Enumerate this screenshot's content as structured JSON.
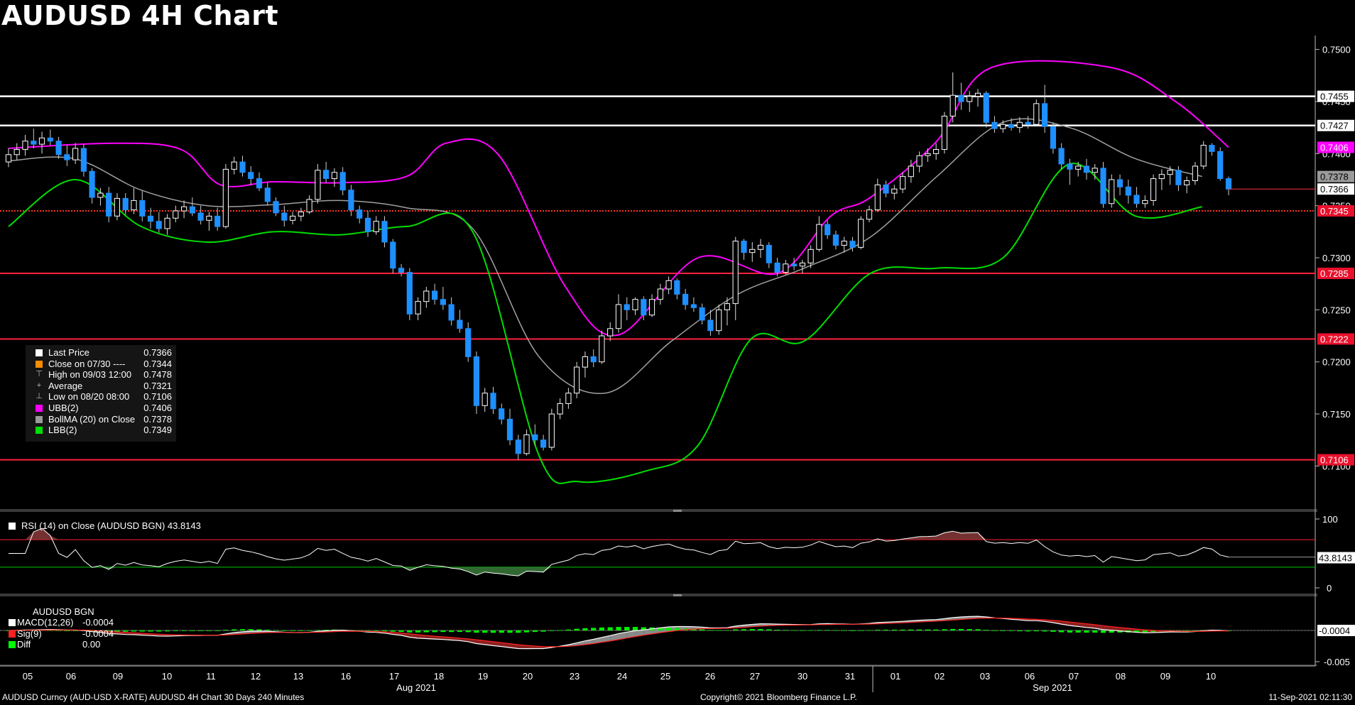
{
  "title": "AUDUSD 4H Chart",
  "legend": [
    {
      "label": "Last Price",
      "value": "0.7366",
      "color": "#ffffff",
      "glyph": ""
    },
    {
      "label": "Close on 07/30 ----",
      "value": "0.7344",
      "color": "#ff8c00",
      "glyph": ""
    },
    {
      "label": "High on 09/03 12:00",
      "value": "0.7478",
      "color": "",
      "glyph": "⊤"
    },
    {
      "label": "Average",
      "value": "0.7321",
      "color": "",
      "glyph": "+"
    },
    {
      "label": "Low on 08/20 08:00",
      "value": "0.7106",
      "color": "",
      "glyph": "⊥"
    },
    {
      "label": "UBB(2)",
      "value": "0.7406",
      "color": "#ff00ff",
      "glyph": ""
    },
    {
      "label": "BollMA (20)  on Close",
      "value": "0.7378",
      "color": "#9a9a9a",
      "glyph": ""
    },
    {
      "label": "LBB(2)",
      "value": "0.7349",
      "color": "#00e000",
      "glyph": ""
    }
  ],
  "rsi_label": "RSI (14)  on Close (AUDUSD BGN) 43.8143",
  "macd": {
    "title": "AUDUSD BGN",
    "rows": [
      {
        "label": "MACD(12,26)",
        "value": "-0.0004",
        "color": "#ffffff"
      },
      {
        "label": "Sig(9)",
        "value": "-0.0004",
        "color": "#ff2020"
      },
      {
        "label": "Diff",
        "value": "0.00",
        "color": "#00ff00"
      }
    ]
  },
  "footer_left": "AUDUSD Curncy (AUD-USD X-RATE) AUDUSD 4H Chart 30 Days 240 Minutes",
  "footer_mid": "Copyright© 2021 Bloomberg Finance L.P.",
  "footer_right": "11-Sep-2021 02:11:30",
  "colors": {
    "up": "#ffffff",
    "down": "#1e8fff",
    "ubb": "#ff00ff",
    "lbb": "#00dd00",
    "ma": "#a0a0a0",
    "level_red": "#ff2040",
    "level_white": "#ffffff"
  },
  "chart_data": {
    "type": "candlestick",
    "title": "AUDUSD 4H Chart",
    "y_ticks": [
      "0.7500",
      "0.7450",
      "0.7400",
      "0.7350",
      "0.7300",
      "0.7250",
      "0.7200",
      "0.7150",
      "0.7100"
    ],
    "ylim": [
      0.7058,
      0.751
    ],
    "x_ticks": [
      "05",
      "06",
      "09",
      "10",
      "11",
      "12",
      "13",
      "16",
      "17",
      "18",
      "19",
      "20",
      "23",
      "24",
      "25",
      "26",
      "27",
      "30",
      "31",
      "01",
      "02",
      "03",
      "06",
      "07",
      "08",
      "09",
      "10"
    ],
    "month_labels": [
      {
        "label": "Aug 2021",
        "at": "17"
      },
      {
        "label": "Sep 2021",
        "at": "06"
      }
    ],
    "levels": [
      {
        "value": 0.7455,
        "label": "0.7455",
        "color": "white"
      },
      {
        "value": 0.7427,
        "label": "0.7427",
        "color": "white"
      },
      {
        "value": 0.7345,
        "label": "0.7345",
        "color": "red-dotted"
      },
      {
        "value": 0.7285,
        "label": "0.7285",
        "color": "red"
      },
      {
        "value": 0.7222,
        "label": "0.7222",
        "color": "red"
      },
      {
        "value": 0.7106,
        "label": "0.7106",
        "color": "red"
      }
    ],
    "price_tags": [
      {
        "value": 0.7406,
        "label": "0.7406",
        "color": "magenta"
      },
      {
        "value": 0.7378,
        "label": "0.7378",
        "color": "gray"
      },
      {
        "value": 0.7366,
        "label": "0.7366",
        "color": "white"
      }
    ],
    "candles": [
      [
        0.7392,
        0.7405,
        0.7387,
        0.7399
      ],
      [
        0.7399,
        0.741,
        0.7394,
        0.7404
      ],
      [
        0.7404,
        0.7418,
        0.7398,
        0.7412
      ],
      [
        0.7412,
        0.7424,
        0.7405,
        0.7409
      ],
      [
        0.7409,
        0.7421,
        0.74,
        0.7415
      ],
      [
        0.7415,
        0.7423,
        0.7408,
        0.7412
      ],
      [
        0.7412,
        0.7416,
        0.7395,
        0.7399
      ],
      [
        0.7399,
        0.7408,
        0.7388,
        0.7394
      ],
      [
        0.7394,
        0.741,
        0.739,
        0.7405
      ],
      [
        0.7405,
        0.7409,
        0.7378,
        0.7383
      ],
      [
        0.7383,
        0.7386,
        0.7352,
        0.7358
      ],
      [
        0.7358,
        0.7367,
        0.735,
        0.7362
      ],
      [
        0.7362,
        0.7368,
        0.7334,
        0.734
      ],
      [
        0.734,
        0.7362,
        0.7336,
        0.7357
      ],
      [
        0.7357,
        0.7362,
        0.7341,
        0.7346
      ],
      [
        0.7346,
        0.7367,
        0.7342,
        0.7355
      ],
      [
        0.7355,
        0.7364,
        0.7335,
        0.734
      ],
      [
        0.734,
        0.7348,
        0.7328,
        0.7335
      ],
      [
        0.7335,
        0.7344,
        0.7324,
        0.7328
      ],
      [
        0.7328,
        0.7342,
        0.7322,
        0.7338
      ],
      [
        0.7338,
        0.735,
        0.7334,
        0.7345
      ],
      [
        0.7345,
        0.7355,
        0.7338,
        0.7349
      ],
      [
        0.7349,
        0.7358,
        0.734,
        0.7343
      ],
      [
        0.7343,
        0.735,
        0.7332,
        0.7336
      ],
      [
        0.7336,
        0.7344,
        0.7326,
        0.734
      ],
      [
        0.734,
        0.7348,
        0.7326,
        0.733
      ],
      [
        0.733,
        0.739,
        0.7328,
        0.7385
      ],
      [
        0.7385,
        0.7397,
        0.738,
        0.7392
      ],
      [
        0.7392,
        0.7398,
        0.7378,
        0.7382
      ],
      [
        0.7382,
        0.7388,
        0.737,
        0.7376
      ],
      [
        0.7376,
        0.7382,
        0.7364,
        0.7367
      ],
      [
        0.7367,
        0.7372,
        0.735,
        0.7354
      ],
      [
        0.7354,
        0.7358,
        0.734,
        0.7343
      ],
      [
        0.7343,
        0.735,
        0.733,
        0.7336
      ],
      [
        0.7336,
        0.7344,
        0.7332,
        0.734
      ],
      [
        0.734,
        0.7348,
        0.7335,
        0.7344
      ],
      [
        0.7344,
        0.736,
        0.7342,
        0.7356
      ],
      [
        0.7356,
        0.739,
        0.7352,
        0.7384
      ],
      [
        0.7384,
        0.7392,
        0.7372,
        0.7376
      ],
      [
        0.7376,
        0.7386,
        0.7368,
        0.7382
      ],
      [
        0.7382,
        0.7387,
        0.736,
        0.7365
      ],
      [
        0.7365,
        0.737,
        0.734,
        0.7346
      ],
      [
        0.7346,
        0.735,
        0.7333,
        0.7338
      ],
      [
        0.7338,
        0.7345,
        0.732,
        0.7325
      ],
      [
        0.7325,
        0.734,
        0.7322,
        0.7335
      ],
      [
        0.7335,
        0.734,
        0.731,
        0.7315
      ],
      [
        0.7315,
        0.7318,
        0.7285,
        0.729
      ],
      [
        0.729,
        0.7294,
        0.7282,
        0.7286
      ],
      [
        0.7286,
        0.729,
        0.724,
        0.7246
      ],
      [
        0.7246,
        0.7262,
        0.724,
        0.7258
      ],
      [
        0.7258,
        0.7272,
        0.7252,
        0.7268
      ],
      [
        0.7268,
        0.7275,
        0.7255,
        0.726
      ],
      [
        0.726,
        0.7272,
        0.725,
        0.7255
      ],
      [
        0.7255,
        0.7262,
        0.7235,
        0.724
      ],
      [
        0.724,
        0.725,
        0.7228,
        0.7232
      ],
      [
        0.7232,
        0.7238,
        0.72,
        0.7205
      ],
      [
        0.7205,
        0.721,
        0.715,
        0.7158
      ],
      [
        0.7158,
        0.7175,
        0.7152,
        0.717
      ],
      [
        0.717,
        0.7176,
        0.715,
        0.7155
      ],
      [
        0.7155,
        0.716,
        0.714,
        0.7145
      ],
      [
        0.7145,
        0.7155,
        0.712,
        0.7125
      ],
      [
        0.7125,
        0.713,
        0.7106,
        0.7112
      ],
      [
        0.7112,
        0.7135,
        0.711,
        0.713
      ],
      [
        0.713,
        0.714,
        0.712,
        0.7125
      ],
      [
        0.7125,
        0.713,
        0.7115,
        0.7118
      ],
      [
        0.7118,
        0.7155,
        0.7115,
        0.715
      ],
      [
        0.715,
        0.7165,
        0.7145,
        0.716
      ],
      [
        0.716,
        0.7175,
        0.7155,
        0.717
      ],
      [
        0.717,
        0.72,
        0.7165,
        0.7195
      ],
      [
        0.7195,
        0.721,
        0.7185,
        0.7205
      ],
      [
        0.7205,
        0.7212,
        0.7195,
        0.72
      ],
      [
        0.72,
        0.723,
        0.7198,
        0.7225
      ],
      [
        0.7225,
        0.7238,
        0.722,
        0.7232
      ],
      [
        0.7232,
        0.7265,
        0.7228,
        0.7255
      ],
      [
        0.7255,
        0.7262,
        0.724,
        0.725
      ],
      [
        0.725,
        0.7262,
        0.7245,
        0.726
      ],
      [
        0.726,
        0.7263,
        0.724,
        0.7245
      ],
      [
        0.7245,
        0.7265,
        0.7243,
        0.726
      ],
      [
        0.726,
        0.7275,
        0.7255,
        0.727
      ],
      [
        0.727,
        0.7282,
        0.7265,
        0.7278
      ],
      [
        0.7278,
        0.728,
        0.726,
        0.7265
      ],
      [
        0.7265,
        0.727,
        0.725,
        0.7255
      ],
      [
        0.7255,
        0.7262,
        0.7248,
        0.7252
      ],
      [
        0.7252,
        0.7256,
        0.7236,
        0.724
      ],
      [
        0.724,
        0.725,
        0.7225,
        0.723
      ],
      [
        0.723,
        0.7255,
        0.7226,
        0.725
      ],
      [
        0.725,
        0.7262,
        0.7235,
        0.7256
      ],
      [
        0.7256,
        0.732,
        0.724,
        0.7316
      ],
      [
        0.7316,
        0.7318,
        0.7298,
        0.7305
      ],
      [
        0.7305,
        0.7315,
        0.7296,
        0.7308
      ],
      [
        0.7308,
        0.7318,
        0.73,
        0.7312
      ],
      [
        0.7312,
        0.7315,
        0.729,
        0.7295
      ],
      [
        0.7295,
        0.73,
        0.7282,
        0.7286
      ],
      [
        0.7286,
        0.7298,
        0.7284,
        0.7294
      ],
      [
        0.7294,
        0.73,
        0.7288,
        0.7292
      ],
      [
        0.7292,
        0.7298,
        0.7285,
        0.7295
      ],
      [
        0.7295,
        0.7312,
        0.729,
        0.7308
      ],
      [
        0.7308,
        0.734,
        0.7306,
        0.7332
      ],
      [
        0.7332,
        0.7336,
        0.7318,
        0.7322
      ],
      [
        0.7322,
        0.7326,
        0.7308,
        0.7312
      ],
      [
        0.7312,
        0.732,
        0.7305,
        0.7316
      ],
      [
        0.7316,
        0.732,
        0.7306,
        0.731
      ],
      [
        0.731,
        0.734,
        0.7308,
        0.7337
      ],
      [
        0.7337,
        0.735,
        0.7334,
        0.7346
      ],
      [
        0.7346,
        0.7376,
        0.7344,
        0.737
      ],
      [
        0.737,
        0.7374,
        0.7358,
        0.7362
      ],
      [
        0.7362,
        0.737,
        0.7356,
        0.7366
      ],
      [
        0.7366,
        0.7382,
        0.7362,
        0.7378
      ],
      [
        0.7378,
        0.7394,
        0.7372,
        0.7388
      ],
      [
        0.7388,
        0.7402,
        0.7382,
        0.7398
      ],
      [
        0.7398,
        0.7405,
        0.7392,
        0.74
      ],
      [
        0.74,
        0.741,
        0.7394,
        0.7404
      ],
      [
        0.7404,
        0.744,
        0.74,
        0.7436
      ],
      [
        0.7436,
        0.7478,
        0.743,
        0.7456
      ],
      [
        0.7456,
        0.7468,
        0.7442,
        0.745
      ],
      [
        0.745,
        0.746,
        0.744,
        0.7455
      ],
      [
        0.7455,
        0.7462,
        0.7445,
        0.7458
      ],
      [
        0.7458,
        0.746,
        0.7425,
        0.743
      ],
      [
        0.743,
        0.7436,
        0.742,
        0.7424
      ],
      [
        0.7424,
        0.7432,
        0.742,
        0.7428
      ],
      [
        0.7428,
        0.7434,
        0.7422,
        0.7425
      ],
      [
        0.7425,
        0.7435,
        0.742,
        0.743
      ],
      [
        0.743,
        0.7436,
        0.7424,
        0.7428
      ],
      [
        0.7428,
        0.7452,
        0.7426,
        0.7448
      ],
      [
        0.7448,
        0.7466,
        0.742,
        0.7426
      ],
      [
        0.7426,
        0.743,
        0.74,
        0.7405
      ],
      [
        0.7405,
        0.741,
        0.7385,
        0.739
      ],
      [
        0.739,
        0.7395,
        0.737,
        0.7385
      ],
      [
        0.7385,
        0.7392,
        0.7378,
        0.7388
      ],
      [
        0.7388,
        0.7395,
        0.7375,
        0.7382
      ],
      [
        0.7382,
        0.739,
        0.7375,
        0.7386
      ],
      [
        0.7386,
        0.7392,
        0.7348,
        0.7352
      ],
      [
        0.7352,
        0.738,
        0.7348,
        0.7375
      ],
      [
        0.7375,
        0.738,
        0.736,
        0.7368
      ],
      [
        0.7368,
        0.7375,
        0.7352,
        0.736
      ],
      [
        0.736,
        0.7368,
        0.7348,
        0.7352
      ],
      [
        0.7352,
        0.736,
        0.7348,
        0.7355
      ],
      [
        0.7355,
        0.738,
        0.735,
        0.7376
      ],
      [
        0.7376,
        0.7385,
        0.7365,
        0.738
      ],
      [
        0.738,
        0.7388,
        0.737,
        0.7384
      ],
      [
        0.7384,
        0.7388,
        0.7364,
        0.737
      ],
      [
        0.737,
        0.7378,
        0.7362,
        0.7374
      ],
      [
        0.7374,
        0.7392,
        0.737,
        0.7388
      ],
      [
        0.7388,
        0.7412,
        0.7385,
        0.7408
      ],
      [
        0.7408,
        0.741,
        0.7398,
        0.7402
      ],
      [
        0.7402,
        0.7406,
        0.7374,
        0.7376
      ],
      [
        0.7376,
        0.7378,
        0.736,
        0.7366
      ]
    ],
    "ubb_path": [
      [
        0,
        0.7405
      ],
      [
        0.08,
        0.741
      ],
      [
        0.13,
        0.7404
      ],
      [
        0.16,
        0.737
      ],
      [
        0.2,
        0.7373
      ],
      [
        0.25,
        0.7372
      ],
      [
        0.3,
        0.7378
      ],
      [
        0.33,
        0.741
      ],
      [
        0.37,
        0.7398
      ],
      [
        0.42,
        0.7272
      ],
      [
        0.46,
        0.7226
      ],
      [
        0.52,
        0.73
      ],
      [
        0.58,
        0.7285
      ],
      [
        0.62,
        0.734
      ],
      [
        0.65,
        0.7358
      ],
      [
        0.7,
        0.7412
      ],
      [
        0.74,
        0.7482
      ],
      [
        0.83,
        0.7483
      ],
      [
        0.88,
        0.745
      ],
      [
        0.92,
        0.7406
      ]
    ],
    "ma_path": [
      [
        0,
        0.7393
      ],
      [
        0.05,
        0.7395
      ],
      [
        0.1,
        0.7365
      ],
      [
        0.15,
        0.735
      ],
      [
        0.2,
        0.7351
      ],
      [
        0.25,
        0.7355
      ],
      [
        0.3,
        0.7348
      ],
      [
        0.35,
        0.7328
      ],
      [
        0.4,
        0.7205
      ],
      [
        0.45,
        0.717
      ],
      [
        0.5,
        0.722
      ],
      [
        0.55,
        0.7265
      ],
      [
        0.6,
        0.729
      ],
      [
        0.65,
        0.732
      ],
      [
        0.7,
        0.7378
      ],
      [
        0.75,
        0.743
      ],
      [
        0.8,
        0.7425
      ],
      [
        0.85,
        0.7395
      ],
      [
        0.9,
        0.7378
      ]
    ],
    "lbb_path": [
      [
        0,
        0.733
      ],
      [
        0.05,
        0.7375
      ],
      [
        0.1,
        0.733
      ],
      [
        0.15,
        0.7315
      ],
      [
        0.2,
        0.7325
      ],
      [
        0.25,
        0.7322
      ],
      [
        0.3,
        0.733
      ],
      [
        0.35,
        0.7325
      ],
      [
        0.4,
        0.711
      ],
      [
        0.43,
        0.7085
      ],
      [
        0.48,
        0.7095
      ],
      [
        0.52,
        0.712
      ],
      [
        0.56,
        0.7222
      ],
      [
        0.6,
        0.722
      ],
      [
        0.65,
        0.7285
      ],
      [
        0.7,
        0.729
      ],
      [
        0.75,
        0.73
      ],
      [
        0.8,
        0.739
      ],
      [
        0.85,
        0.734
      ],
      [
        0.9,
        0.7349
      ]
    ],
    "rsi": {
      "ylim": [
        0,
        100
      ],
      "y_ticks": [
        "100",
        "0"
      ],
      "overbought": 70,
      "oversold": 30,
      "last": "43.8143"
    },
    "macd_tag": "-0.0004",
    "macd_y_ticks": [
      "-0.005"
    ]
  }
}
